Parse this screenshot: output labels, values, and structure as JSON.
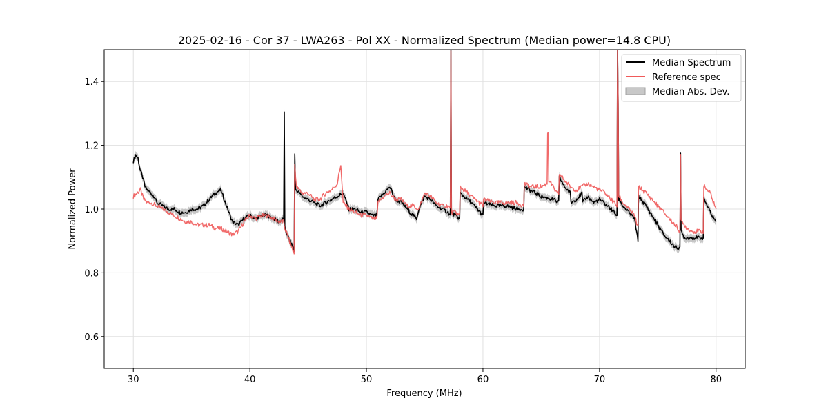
{
  "chart_data": {
    "type": "line",
    "title": "2025-02-16 - Cor 37 - LWA263 - Pol XX - Normalized Spectrum (Median power=14.8 CPU)",
    "xlabel": "Frequency (MHz)",
    "ylabel": "Normalized Power",
    "xlim": [
      27.5,
      82.5
    ],
    "ylim": [
      0.5,
      1.5
    ],
    "xticks": [
      30,
      40,
      50,
      60,
      70,
      80
    ],
    "yticks": [
      0.6,
      0.8,
      1.0,
      1.2,
      1.4
    ],
    "xtick_labels": [
      "30",
      "40",
      "50",
      "60",
      "70",
      "80"
    ],
    "ytick_labels": [
      "0.6",
      "0.8",
      "1.0",
      "1.2",
      "1.4"
    ],
    "grid": true,
    "legend_position": "top-right",
    "colors": {
      "median": "#000000",
      "reference": "#f05a5a",
      "mad": "#bdbdbd"
    },
    "legend": {
      "median": "Median Spectrum",
      "reference": "Reference spec",
      "mad": "Median Abs. Dev."
    },
    "series": [
      {
        "name": "Median Spectrum",
        "x": [
          30.0,
          30.2,
          30.4,
          30.6,
          30.8,
          31.0,
          31.2,
          31.5,
          31.8,
          32.0,
          32.5,
          33.0,
          33.5,
          34.0,
          34.5,
          35.0,
          35.5,
          36.0,
          36.5,
          37.0,
          37.5,
          38.0,
          38.5,
          39.0,
          39.5,
          40.0,
          40.5,
          41.0,
          41.5,
          42.0,
          42.5,
          42.9,
          42.95,
          43.0,
          43.3,
          43.7,
          43.8,
          43.85,
          44.0,
          44.5,
          45.0,
          45.5,
          46.0,
          46.5,
          47.0,
          47.5,
          48.0,
          48.5,
          49.0,
          49.5,
          50.0,
          50.5,
          50.9,
          51.0,
          51.5,
          52.0,
          52.5,
          53.0,
          53.5,
          54.0,
          54.3,
          54.5,
          55.0,
          55.5,
          56.0,
          56.5,
          57.0,
          57.2,
          57.25,
          57.3,
          57.6,
          58.0,
          58.05,
          59.0,
          60.0,
          60.05,
          61.0,
          62.0,
          63.0,
          63.5,
          63.55,
          64.0,
          65.0,
          66.0,
          66.5,
          66.55,
          67.0,
          67.5,
          67.55,
          68.0,
          68.5,
          68.55,
          69.0,
          69.5,
          70.0,
          71.0,
          71.5,
          71.55,
          71.6,
          71.7,
          72.0,
          72.5,
          73.0,
          73.3,
          73.35,
          74.0,
          74.5,
          75.0,
          75.5,
          76.0,
          76.5,
          76.9,
          76.95,
          77.0,
          77.3,
          77.5,
          78.0,
          78.5,
          78.9,
          79.0,
          79.5,
          80.0
        ],
        "values": [
          1.15,
          1.17,
          1.16,
          1.12,
          1.1,
          1.07,
          1.06,
          1.05,
          1.04,
          1.02,
          1.01,
          1.0,
          1.0,
          0.99,
          0.99,
          1.0,
          1.0,
          1.01,
          1.03,
          1.05,
          1.06,
          1.01,
          0.96,
          0.95,
          0.97,
          0.98,
          0.97,
          0.98,
          0.98,
          0.97,
          0.96,
          0.97,
          1.3,
          0.94,
          0.91,
          0.88,
          0.87,
          1.17,
          1.06,
          1.04,
          1.03,
          1.02,
          1.01,
          1.02,
          1.03,
          1.04,
          1.05,
          1.0,
          1.0,
          0.99,
          0.99,
          0.98,
          0.98,
          1.03,
          1.05,
          1.07,
          1.03,
          1.02,
          1.0,
          0.98,
          0.97,
          1.0,
          1.04,
          1.03,
          1.01,
          1.0,
          0.99,
          0.98,
          1.5,
          0.99,
          0.98,
          0.97,
          1.05,
          1.02,
          0.98,
          1.02,
          1.01,
          1.01,
          1.0,
          1.0,
          1.07,
          1.06,
          1.04,
          1.03,
          1.02,
          1.1,
          1.07,
          1.05,
          1.02,
          1.03,
          1.05,
          1.02,
          1.04,
          1.02,
          1.03,
          1.0,
          0.98,
          1.5,
          1.33,
          1.03,
          1.01,
          0.99,
          0.97,
          0.9,
          1.04,
          1.01,
          0.98,
          0.95,
          0.92,
          0.9,
          0.88,
          0.88,
          1.17,
          0.93,
          0.91,
          0.91,
          0.91,
          0.91,
          0.91,
          1.03,
          0.99,
          0.96
        ]
      },
      {
        "name": "Reference spec",
        "x": [
          30.0,
          30.3,
          30.6,
          30.9,
          31.2,
          31.5,
          32.0,
          32.5,
          33.0,
          33.5,
          34.0,
          34.5,
          35.0,
          35.5,
          36.0,
          36.5,
          37.0,
          37.5,
          38.0,
          38.5,
          39.0,
          39.5,
          40.0,
          40.5,
          41.0,
          41.5,
          42.0,
          42.5,
          42.9,
          43.0,
          43.3,
          43.7,
          43.8,
          43.85,
          44.0,
          44.5,
          45.0,
          45.5,
          46.0,
          46.5,
          47.0,
          47.5,
          47.8,
          48.0,
          48.5,
          49.0,
          49.5,
          50.0,
          50.5,
          50.9,
          51.0,
          51.5,
          52.0,
          52.5,
          53.0,
          53.5,
          54.0,
          54.5,
          55.0,
          55.5,
          56.0,
          56.5,
          57.0,
          57.2,
          57.25,
          57.3,
          57.6,
          58.0,
          58.05,
          59.0,
          60.0,
          60.05,
          61.0,
          62.0,
          63.0,
          63.5,
          63.55,
          64.0,
          65.0,
          65.5,
          65.6,
          65.7,
          66.0,
          66.5,
          66.55,
          67.0,
          67.5,
          68.0,
          68.5,
          69.0,
          69.5,
          70.0,
          70.5,
          71.0,
          71.5,
          71.55,
          71.6,
          71.7,
          72.0,
          72.5,
          73.0,
          73.3,
          73.35,
          74.0,
          74.5,
          75.0,
          75.5,
          76.0,
          76.5,
          76.9,
          76.95,
          77.0,
          77.3,
          77.5,
          78.0,
          78.5,
          78.9,
          79.0,
          79.5,
          80.0
        ],
        "values": [
          1.04,
          1.05,
          1.06,
          1.03,
          1.02,
          1.02,
          1.01,
          1.0,
          0.99,
          0.98,
          0.97,
          0.96,
          0.96,
          0.95,
          0.95,
          0.95,
          0.94,
          0.94,
          0.93,
          0.92,
          0.93,
          0.96,
          0.98,
          0.97,
          0.98,
          0.98,
          0.97,
          0.96,
          0.96,
          0.94,
          0.91,
          0.87,
          0.86,
          1.14,
          1.07,
          1.05,
          1.05,
          1.03,
          1.03,
          1.05,
          1.06,
          1.08,
          1.14,
          1.02,
          1.0,
          0.99,
          0.98,
          0.98,
          0.97,
          0.97,
          1.02,
          1.04,
          1.05,
          1.03,
          1.03,
          1.01,
          1.01,
          1.0,
          1.05,
          1.04,
          1.02,
          1.01,
          1.01,
          1.0,
          1.5,
          0.99,
          0.99,
          0.98,
          1.07,
          1.04,
          1.01,
          1.03,
          1.02,
          1.02,
          1.02,
          1.01,
          1.08,
          1.07,
          1.07,
          1.08,
          1.24,
          1.09,
          1.07,
          1.04,
          1.11,
          1.09,
          1.07,
          1.06,
          1.07,
          1.08,
          1.07,
          1.06,
          1.05,
          1.03,
          1.01,
          1.5,
          1.33,
          1.04,
          1.02,
          1.0,
          0.98,
          0.94,
          1.07,
          1.05,
          1.03,
          1.01,
          0.99,
          0.97,
          0.95,
          0.93,
          1.17,
          0.96,
          0.95,
          0.94,
          0.93,
          0.93,
          0.93,
          1.07,
          1.05,
          1.0
        ]
      }
    ],
    "mad_band": {
      "name": "Median Abs. Dev.",
      "width": 0.012
    }
  }
}
